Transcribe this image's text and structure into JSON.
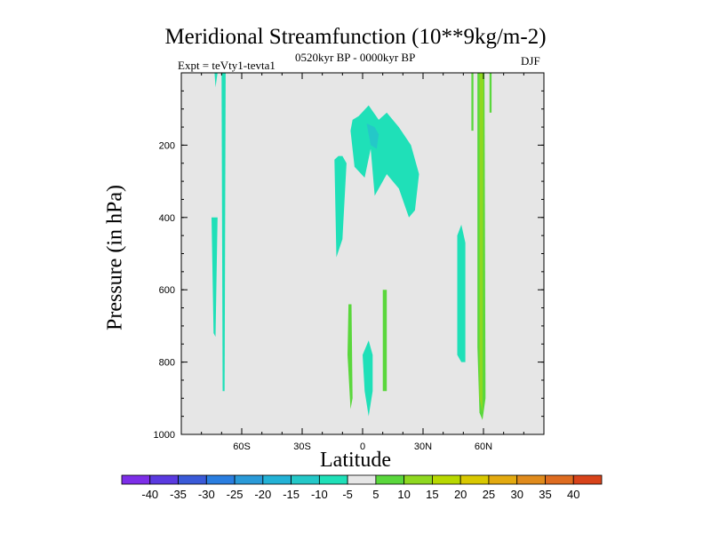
{
  "chart_data": {
    "type": "contour",
    "title": "Meridional Streamfunction (10**9kg/m-2)",
    "subtitle_left": "Expt = teVty1-tevta1",
    "subtitle_center": "0520kyr BP - 0000kyr BP",
    "subtitle_right": "DJF",
    "xlabel": "Latitude",
    "ylabel": "Pressure (in hPa)",
    "x_range": [
      -90,
      90
    ],
    "y_range": [
      0,
      1000
    ],
    "y_inverted": true,
    "x_ticks": [
      {
        "value": -60,
        "label": "60S"
      },
      {
        "value": -30,
        "label": "30S"
      },
      {
        "value": 0,
        "label": "0"
      },
      {
        "value": 30,
        "label": "30N"
      },
      {
        "value": 60,
        "label": "60N"
      }
    ],
    "y_ticks": [
      {
        "value": 200,
        "label": "200"
      },
      {
        "value": 400,
        "label": "400"
      },
      {
        "value": 600,
        "label": "600"
      },
      {
        "value": 800,
        "label": "800"
      },
      {
        "value": 1000,
        "label": "1000"
      }
    ],
    "background_color": "#e6e6e6",
    "colorbar": {
      "labels": [
        "-40",
        "-35",
        "-30",
        "-25",
        "-20",
        "-15",
        "-10",
        "-5",
        "5",
        "10",
        "15",
        "20",
        "25",
        "30",
        "35",
        "40"
      ],
      "colors": [
        "#7d2ee8",
        "#5a3ae0",
        "#3a5ad8",
        "#2a7ee0",
        "#2a9ad8",
        "#23b2d6",
        "#24c8c8",
        "#1fe0b8",
        "#e6e6e6",
        "#5ad73c",
        "#8fd820",
        "#b8d800",
        "#d9c800",
        "#e3aa10",
        "#e08b1c",
        "#de6c20",
        "#d8431a"
      ]
    },
    "regions": [
      {
        "level": "-5",
        "color": "#1fe0b8",
        "polygon": [
          [
            -75,
            400
          ],
          [
            -74,
            720
          ],
          [
            -73,
            730
          ],
          [
            -72,
            400
          ]
        ]
      },
      {
        "level": "-5",
        "color": "#1fe0b8",
        "polygon": [
          [
            -73.5,
            0
          ],
          [
            -73,
            40
          ],
          [
            -72,
            0
          ]
        ]
      },
      {
        "level": "-5",
        "color": "#1fe0b8",
        "polygon": [
          [
            -70,
            0
          ],
          [
            -69.5,
            880
          ],
          [
            -68.5,
            880
          ],
          [
            -68,
            0
          ]
        ]
      },
      {
        "level": "-5",
        "color": "#1fe0b8",
        "polygon": [
          [
            -14,
            240
          ],
          [
            -13,
            510
          ],
          [
            -10,
            460
          ],
          [
            -8,
            250
          ],
          [
            -10,
            230
          ],
          [
            -12,
            230
          ]
        ]
      },
      {
        "level": "-5",
        "color": "#1fe0b8",
        "polygon": [
          [
            -6,
            160
          ],
          [
            -4,
            260
          ],
          [
            1,
            290
          ],
          [
            4,
            210
          ],
          [
            6,
            340
          ],
          [
            12,
            280
          ],
          [
            18,
            320
          ],
          [
            23,
            400
          ],
          [
            26,
            380
          ],
          [
            28,
            280
          ],
          [
            24,
            200
          ],
          [
            18,
            150
          ],
          [
            12,
            110
          ],
          [
            8,
            130
          ],
          [
            3,
            90
          ],
          [
            -2,
            120
          ],
          [
            -5,
            130
          ]
        ]
      },
      {
        "level": "-5",
        "color": "#1fe0b8",
        "polygon": [
          [
            0,
            780
          ],
          [
            1,
            880
          ],
          [
            3,
            950
          ],
          [
            5,
            880
          ],
          [
            5,
            780
          ],
          [
            3,
            740
          ]
        ]
      },
      {
        "level": "-5",
        "color": "#1fe0b8",
        "polygon": [
          [
            47,
            450
          ],
          [
            47,
            780
          ],
          [
            49,
            800
          ],
          [
            51,
            800
          ],
          [
            51,
            470
          ],
          [
            49,
            420
          ]
        ]
      },
      {
        "level": "-10",
        "color": "#24c8c8",
        "polygon": [
          [
            2,
            140
          ],
          [
            4,
            200
          ],
          [
            7,
            210
          ],
          [
            8,
            170
          ],
          [
            6,
            150
          ]
        ]
      },
      {
        "level": "5",
        "color": "#5ad73c",
        "polygon": [
          [
            -7,
            640
          ],
          [
            -7.5,
            780
          ],
          [
            -6,
            930
          ],
          [
            -5,
            900
          ],
          [
            -5.5,
            640
          ]
        ]
      },
      {
        "level": "5",
        "color": "#5ad73c",
        "polygon": [
          [
            10,
            600
          ],
          [
            10,
            880
          ],
          [
            12,
            880
          ],
          [
            12,
            600
          ]
        ]
      },
      {
        "level": "5",
        "color": "#5ad73c",
        "polygon": [
          [
            54,
            0
          ],
          [
            54,
            160
          ],
          [
            55,
            160
          ],
          [
            55,
            0
          ]
        ]
      },
      {
        "level": "5",
        "color": "#5ad73c",
        "polygon": [
          [
            57,
            0
          ],
          [
            57,
            760
          ],
          [
            58,
            940
          ],
          [
            59.5,
            960
          ],
          [
            61,
            900
          ],
          [
            60.5,
            0
          ]
        ]
      },
      {
        "level": "5",
        "color": "#5ad73c",
        "polygon": [
          [
            63,
            0
          ],
          [
            63,
            110
          ],
          [
            64,
            110
          ],
          [
            64,
            0
          ]
        ]
      },
      {
        "level": "10",
        "color": "#8fd820",
        "polygon": [
          [
            58,
            0
          ],
          [
            58,
            900
          ],
          [
            59.5,
            940
          ],
          [
            60,
            0
          ]
        ]
      }
    ]
  }
}
